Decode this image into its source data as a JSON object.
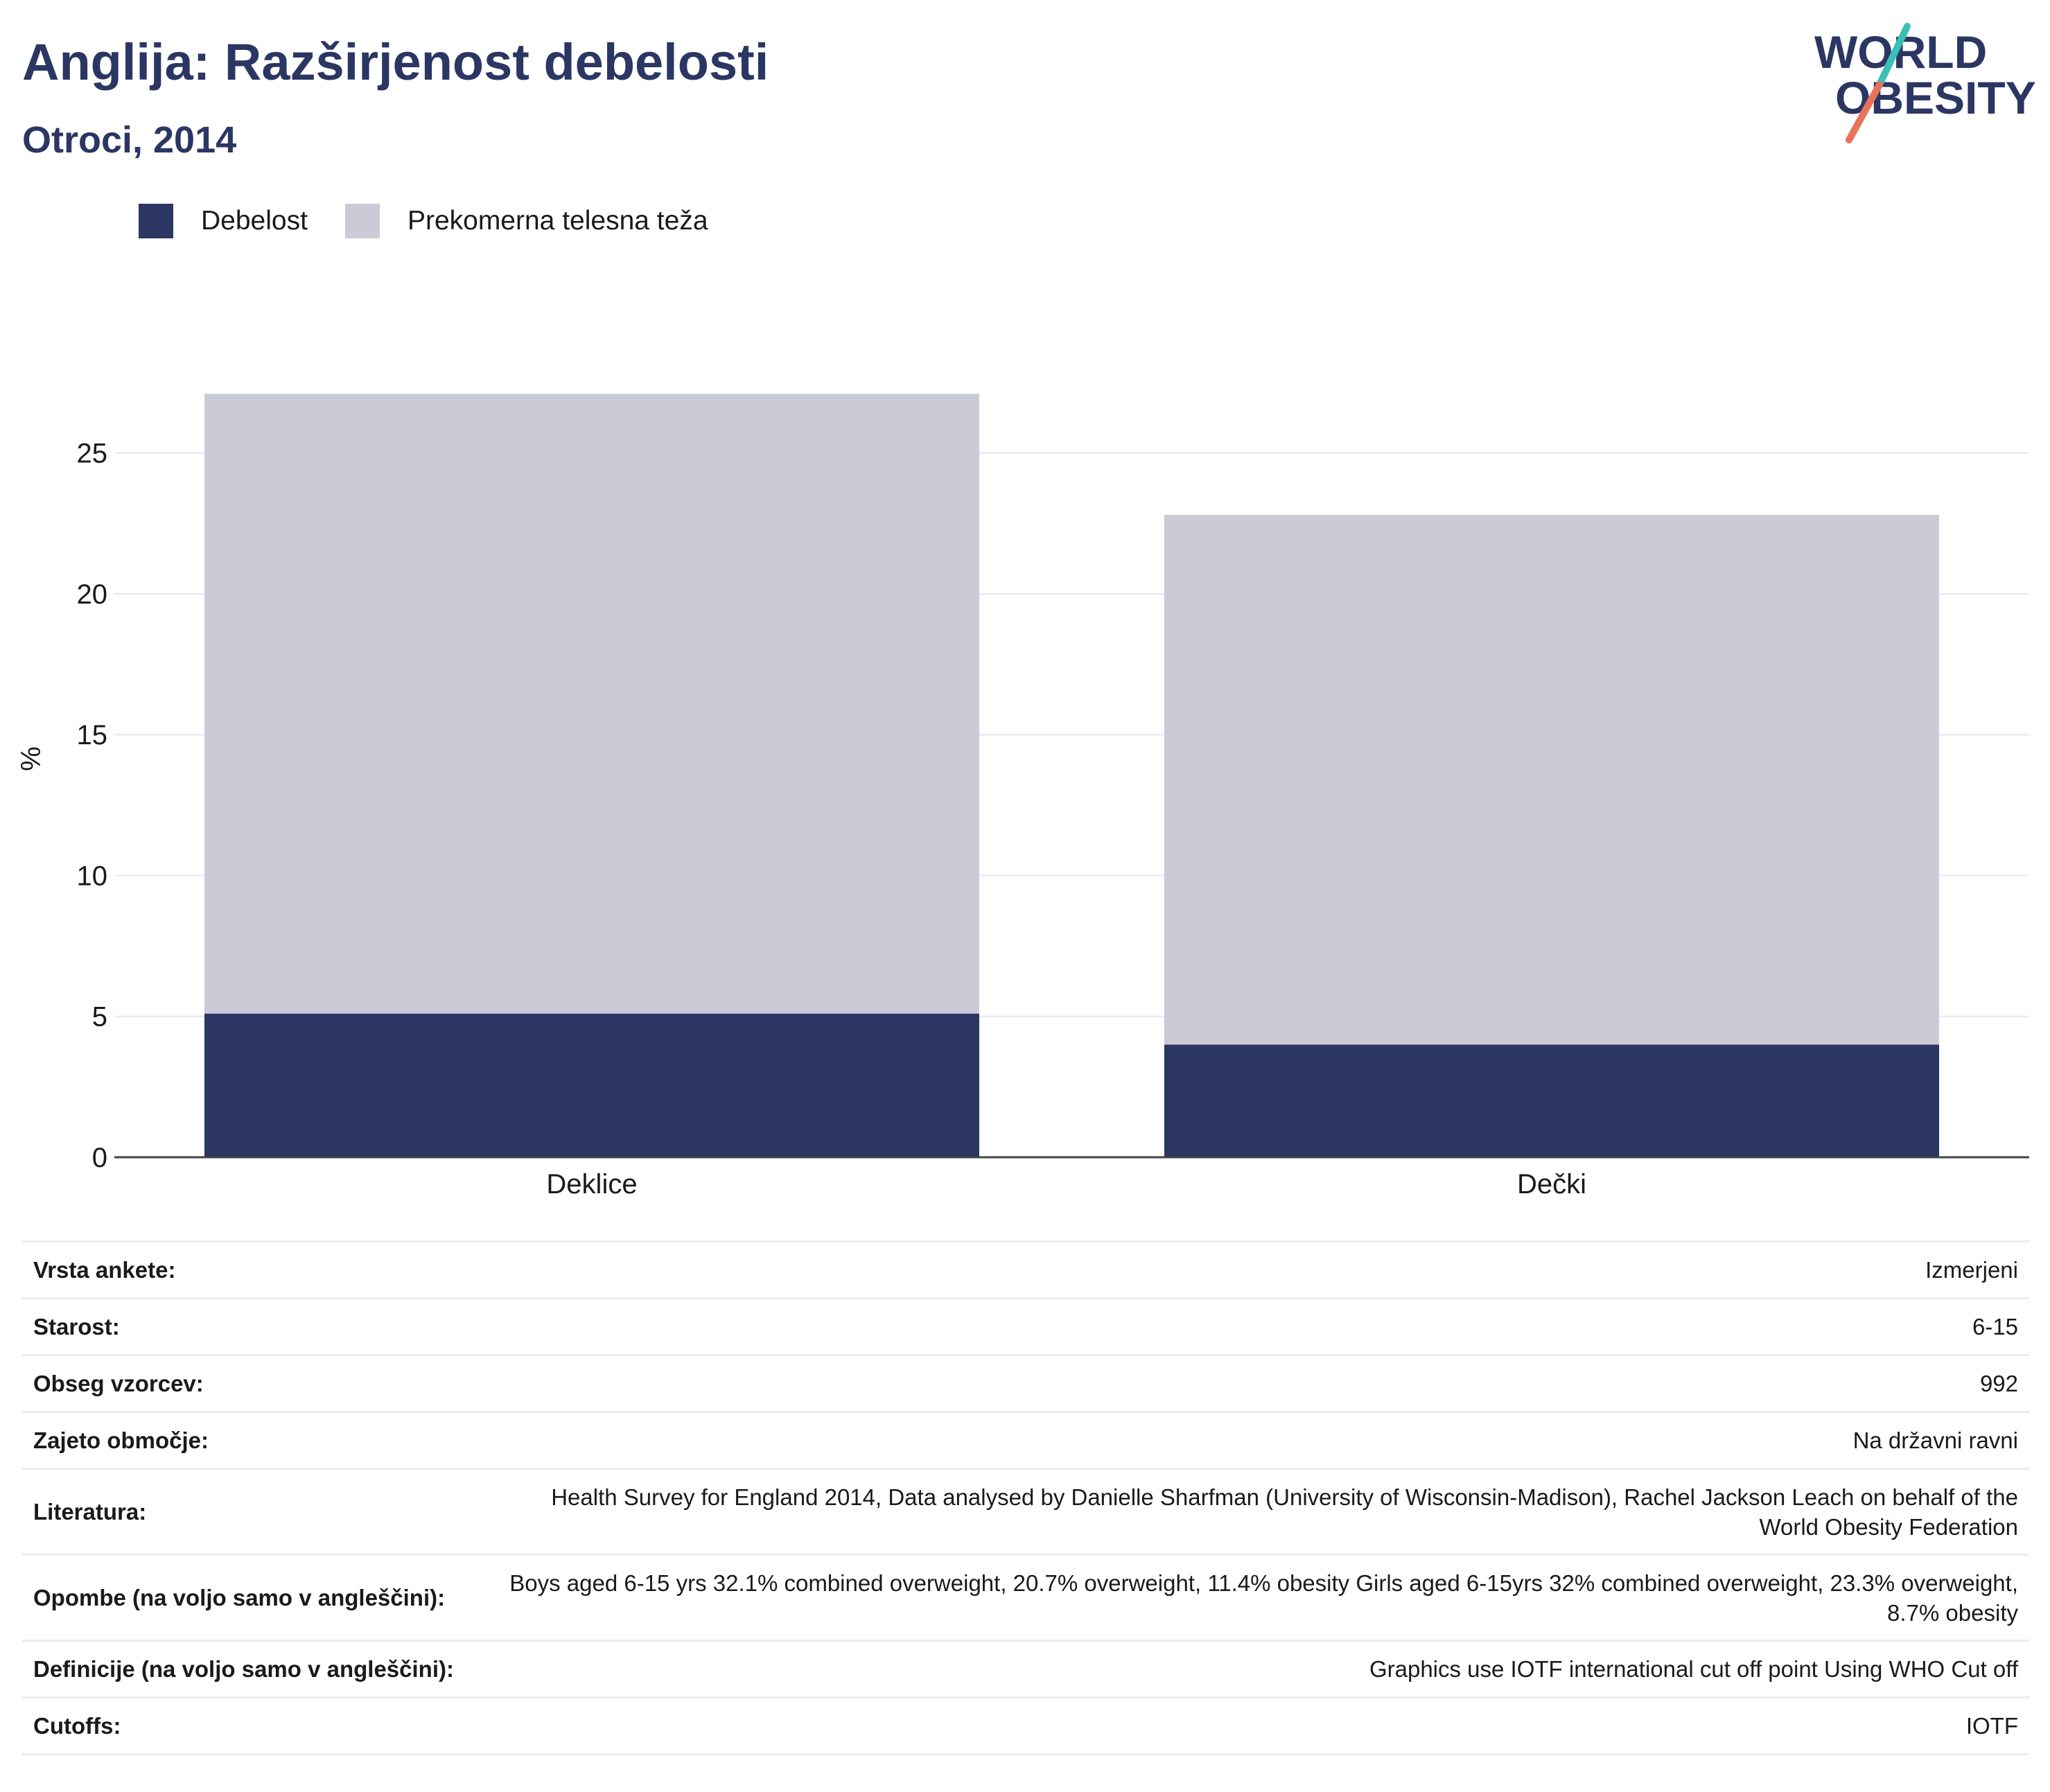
{
  "header": {
    "title": "Anglija: Razširjenost debelosti",
    "subtitle": "Otroci, 2014"
  },
  "logo": {
    "line1": "WORLD",
    "line2": "OBESITY"
  },
  "colors": {
    "obesity": "#2b3663",
    "overweight": "#cacbd7",
    "accent_teal": "#3bbfb6",
    "accent_coral": "#e8735a"
  },
  "chart_data": {
    "type": "bar",
    "stacked": true,
    "categories": [
      "Deklice",
      "Dečki"
    ],
    "series": [
      {
        "name": "Debelost",
        "values": [
          5.1,
          4.0
        ]
      },
      {
        "name": "Prekomerna telesna teža",
        "values": [
          22.0,
          18.8
        ]
      }
    ],
    "ylabel": "%",
    "ylim": [
      0,
      27.6
    ],
    "yticks": [
      0,
      5,
      10,
      15,
      20,
      25
    ],
    "grid": true,
    "legend": "top-left"
  },
  "info": [
    {
      "key": "Vrsta ankete:",
      "value": "Izmerjeni"
    },
    {
      "key": "Starost:",
      "value": "6-15"
    },
    {
      "key": "Obseg vzorcev:",
      "value": "992"
    },
    {
      "key": "Zajeto območje:",
      "value": "Na državni ravni"
    },
    {
      "key": "Literatura:",
      "value": "Health Survey for England 2014, Data analysed by Danielle Sharfman (University of Wisconsin-Madison), Rachel Jackson Leach on behalf of the World Obesity Federation"
    },
    {
      "key": "Opombe (na voljo samo v angleščini):",
      "value": "Boys aged 6-15 yrs 32.1% combined overweight, 20.7% overweight, 11.4% obesity Girls aged 6-15yrs 32% combined overweight, 23.3% overweight, 8.7% obesity"
    },
    {
      "key": "Definicije (na voljo samo v angleščini):",
      "value": "Graphics use IOTF international cut off point Using WHO Cut off"
    },
    {
      "key": "Cutoffs:",
      "value": "IOTF"
    }
  ]
}
